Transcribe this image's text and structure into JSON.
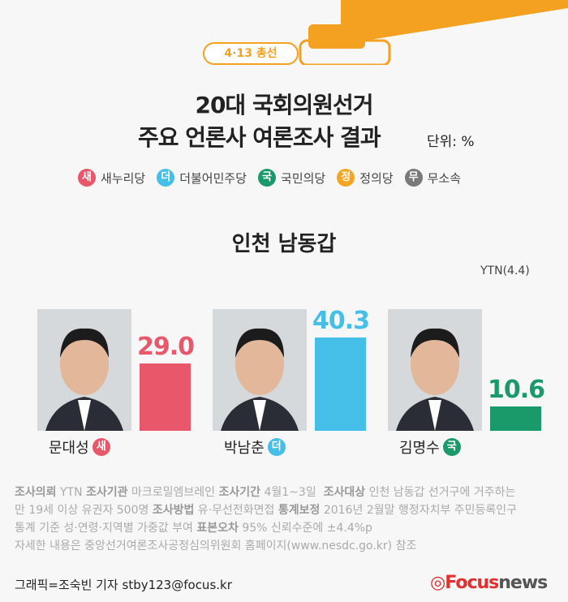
{
  "header": {
    "badge": "4·13 총선",
    "title_line1": "20대 국회의원선거",
    "title_line2": "주요 언론사 여론조사 결과",
    "unit": "단위: %"
  },
  "legend": [
    {
      "mark": "새",
      "label": "새누리당",
      "color": "#e8576a"
    },
    {
      "mark": "더",
      "label": "더불어민주당",
      "color": "#45bfe8"
    },
    {
      "mark": "국",
      "label": "국민의당",
      "color": "#1a9a6a"
    },
    {
      "mark": "정",
      "label": "정의당",
      "color": "#f4a623"
    },
    {
      "mark": "무",
      "label": "무소속",
      "color": "#7a7a7a"
    }
  ],
  "chart_data": {
    "type": "bar",
    "title": "인천 남동갑",
    "source": "YTN(4.4)",
    "categories": [
      "문대성",
      "박남춘",
      "김명수"
    ],
    "parties": [
      "새",
      "더",
      "국"
    ],
    "values": [
      29.0,
      40.3,
      10.6
    ],
    "colors": [
      "#e8576a",
      "#45bfe8",
      "#1a9a6a"
    ],
    "value_labels": [
      "29.0",
      "40.3",
      "10.6"
    ]
  },
  "footer": {
    "line1": [
      {
        "b": "조사의뢰"
      },
      {
        "t": " YTN "
      },
      {
        "b": "조사기관"
      },
      {
        "t": " 마크로밀엠브레인 "
      },
      {
        "b": "조사기간"
      },
      {
        "t": " 4월1~3일  "
      },
      {
        "b": "조사대상"
      },
      {
        "t": " 인천 남동갑 선거구에 거주하는"
      }
    ],
    "line2": [
      {
        "t": "만 19세 이상 유권자 500명 "
      },
      {
        "b": "조사방법"
      },
      {
        "t": " 유·무선전화면접 "
      },
      {
        "b": "통계보정"
      },
      {
        "t": " 2016년 2월말 행정자치부 주민등록인구"
      }
    ],
    "line3": [
      {
        "t": "통계 기준 성·연령·지역별 가중값 부여 "
      },
      {
        "b": "표본오차"
      },
      {
        "t": " 95% 신뢰수준에 ±4.4%p"
      }
    ],
    "line4": [
      {
        "t": "자세한 내용은 중앙선거여론조사공정심의위원회 홈페이지(www.nesdc.go.kr) 참조"
      }
    ],
    "credit": "그래픽=조숙빈 기자 stby123@focus.kr",
    "logo_a": "Focus",
    "logo_b": "news"
  }
}
